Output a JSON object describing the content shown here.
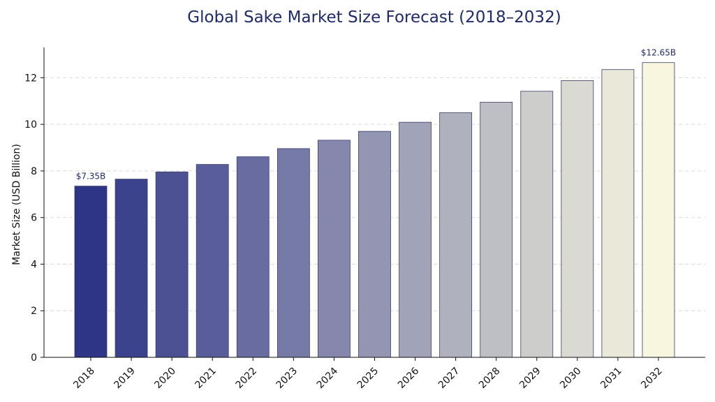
{
  "chart_data": {
    "type": "bar",
    "title": "Global Sake Market Size Forecast (2018–2032)",
    "xlabel": "",
    "ylabel": "Market Size (USD Billion)",
    "categories": [
      "2018",
      "2019",
      "2020",
      "2021",
      "2022",
      "2023",
      "2024",
      "2025",
      "2026",
      "2027",
      "2028",
      "2029",
      "2030",
      "2031",
      "2032"
    ],
    "values": [
      7.35,
      7.65,
      7.96,
      8.28,
      8.61,
      8.96,
      9.32,
      9.7,
      10.09,
      10.5,
      10.95,
      11.42,
      11.88,
      12.35,
      12.65
    ],
    "data_labels": [
      "$7.35B",
      "",
      "",
      "",
      "",
      "",
      "",
      "",
      "",
      "",
      "",
      "",
      "",
      "",
      "$12.65B"
    ],
    "ylim": [
      0,
      13.3
    ],
    "yticks": [
      "0",
      "2",
      "4",
      "6",
      "8",
      "10",
      "12"
    ],
    "grid": "horizontal dashed",
    "legend": "none",
    "colors": {
      "start": "#2e3587",
      "end": "#f8f6de",
      "edge": "#3a3f6e",
      "title": "#1f2a6b"
    }
  }
}
